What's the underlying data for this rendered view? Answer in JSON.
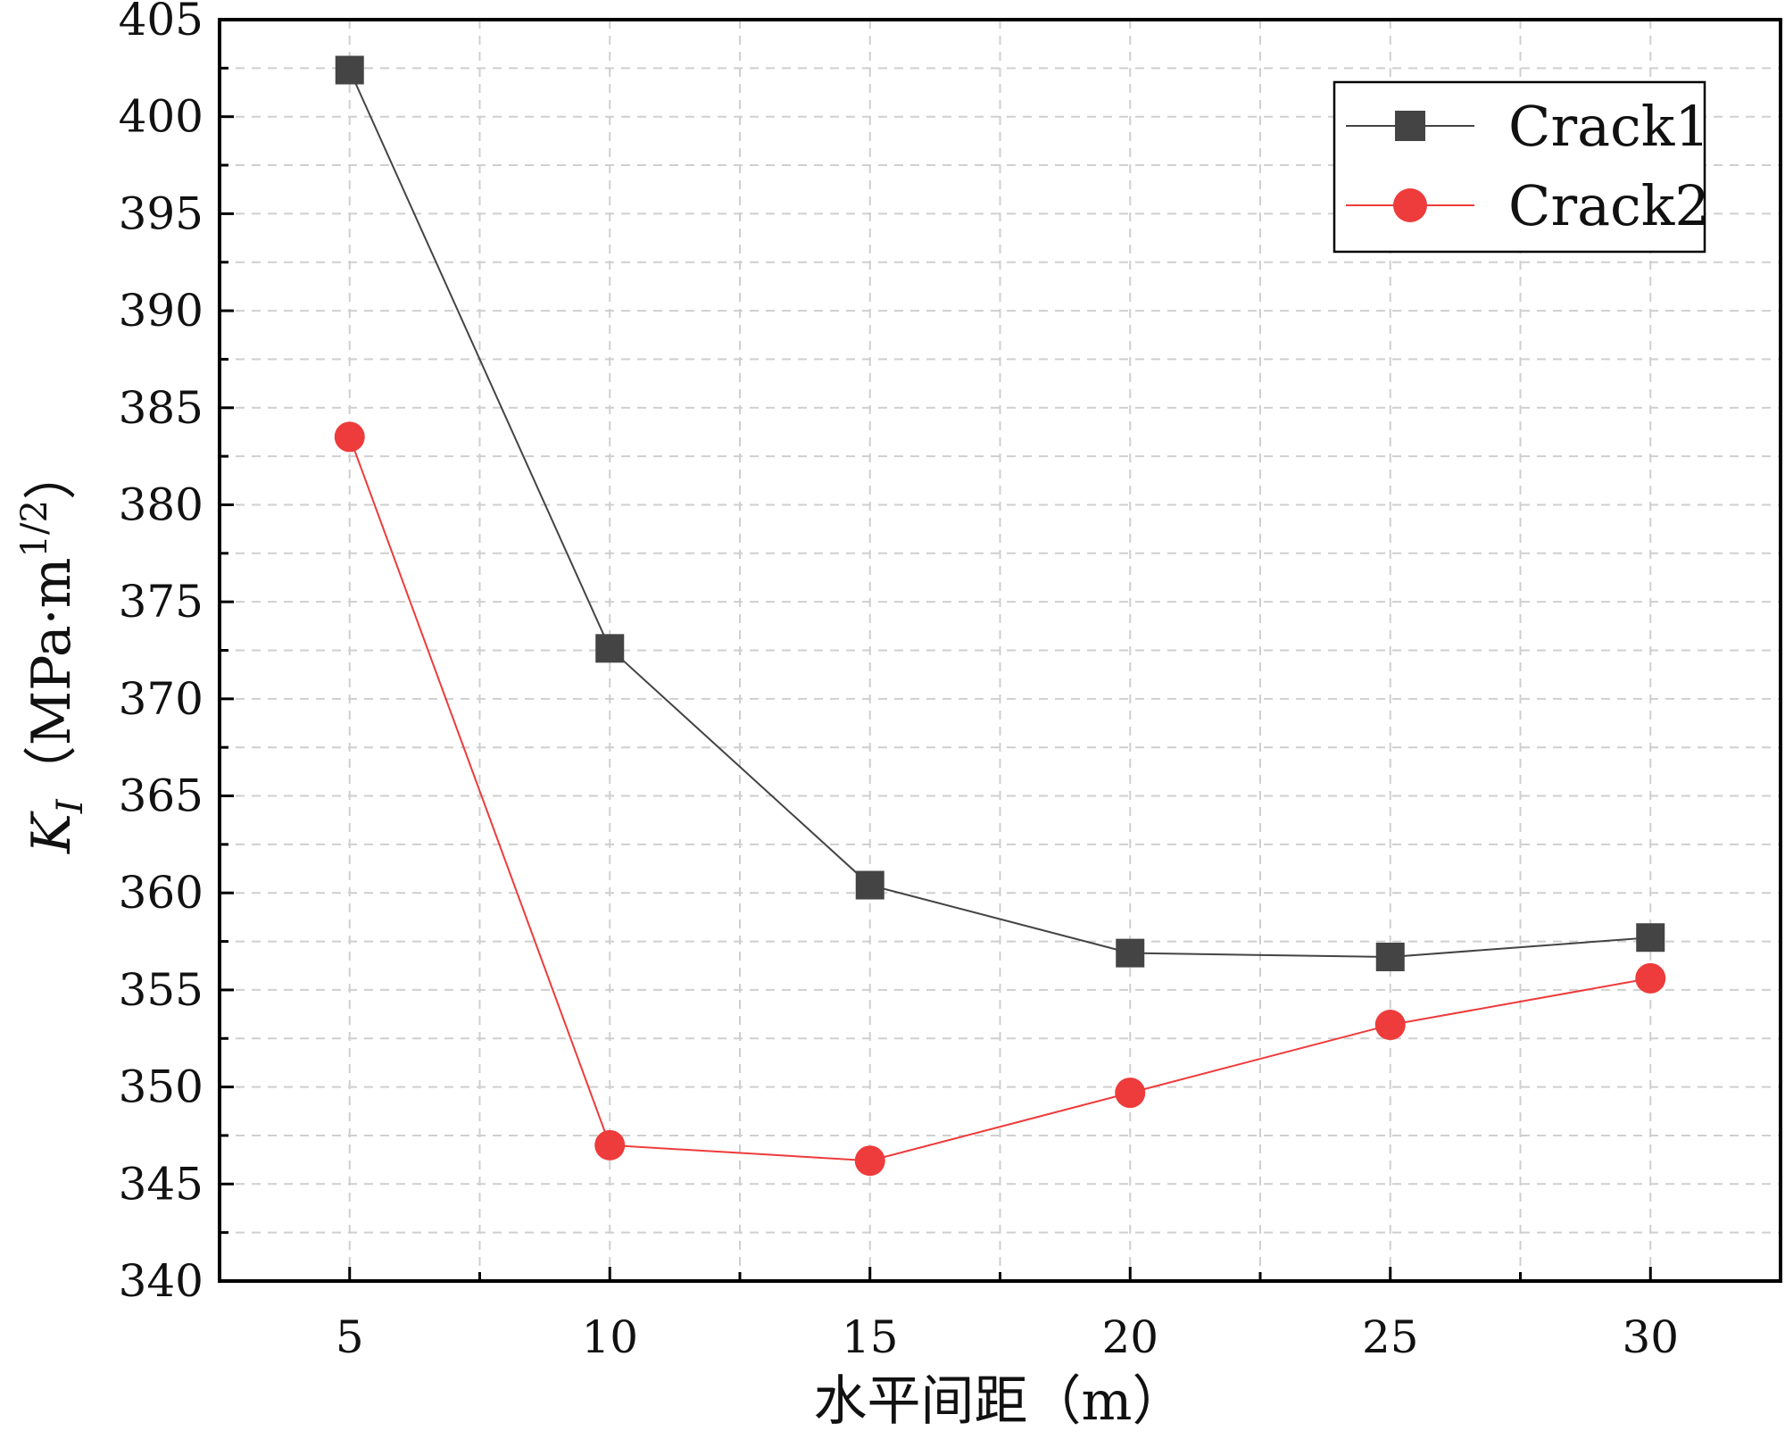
{
  "chart_data": {
    "type": "line",
    "title": "",
    "xlabel": "水平间距（m）",
    "ylabel_main": "K",
    "ylabel_sub": "I",
    "ylabel_units": "（MPa·m",
    "ylabel_exp": "1/2",
    "ylabel_close": "）",
    "x": [
      5,
      10,
      15,
      20,
      25,
      30
    ],
    "xlim": [
      2.5,
      32.5
    ],
    "ylim": [
      340,
      405
    ],
    "xticks": [
      5,
      10,
      15,
      20,
      25,
      30
    ],
    "xtick_labels": [
      "5",
      "10",
      "15",
      "20",
      "25",
      "30"
    ],
    "yticks": [
      340,
      345,
      350,
      355,
      360,
      365,
      370,
      375,
      380,
      385,
      390,
      395,
      400,
      405
    ],
    "ytick_labels": [
      "340",
      "345",
      "350",
      "355",
      "360",
      "365",
      "370",
      "375",
      "380",
      "385",
      "390",
      "395",
      "400",
      "405"
    ],
    "grid": true,
    "legend_position": "top-right",
    "series": [
      {
        "name": "Crack1",
        "marker": "square",
        "color": "#444444",
        "values": [
          402.4,
          372.6,
          360.4,
          356.9,
          356.7,
          357.7
        ]
      },
      {
        "name": "Crack2",
        "marker": "circle",
        "color": "#ee3b3b",
        "values": [
          383.5,
          347.0,
          346.2,
          349.7,
          353.2,
          355.6
        ]
      }
    ]
  }
}
